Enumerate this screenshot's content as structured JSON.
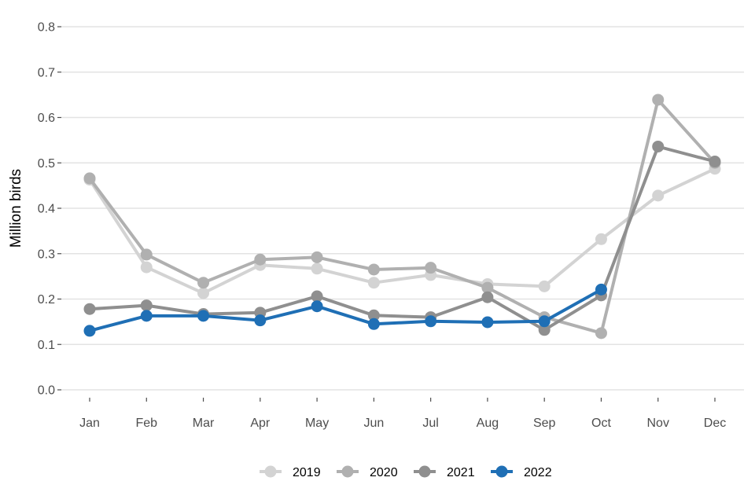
{
  "chart_data": {
    "type": "line",
    "title": "",
    "xlabel": "",
    "ylabel": "Million birds",
    "ylim": [
      0,
      0.8
    ],
    "yticks": [
      0.0,
      0.1,
      0.2,
      0.3,
      0.4,
      0.5,
      0.6,
      0.7,
      0.8
    ],
    "ytick_labels": [
      "0.0",
      "0.1",
      "0.2",
      "0.3",
      "0.4",
      "0.5",
      "0.6",
      "0.7",
      "0.8"
    ],
    "categories": [
      "Jan",
      "Feb",
      "Mar",
      "Apr",
      "May",
      "Jun",
      "Jul",
      "Aug",
      "Sep",
      "Oct",
      "Nov",
      "Dec"
    ],
    "grid": true,
    "legend_position": "bottom",
    "series": [
      {
        "name": "2019",
        "color": "#d3d3d3",
        "values": [
          0.463,
          0.27,
          0.213,
          0.275,
          0.267,
          0.236,
          0.253,
          0.233,
          0.228,
          0.332,
          0.428,
          0.487
        ]
      },
      {
        "name": "2020",
        "color": "#b0b0b0",
        "values": [
          0.466,
          0.298,
          0.236,
          0.287,
          0.292,
          0.265,
          0.269,
          0.225,
          0.16,
          0.125,
          0.639,
          0.5
        ]
      },
      {
        "name": "2021",
        "color": "#8f8f8f",
        "values": [
          0.178,
          0.186,
          0.167,
          0.17,
          0.206,
          0.164,
          0.16,
          0.204,
          0.132,
          0.208,
          0.536,
          0.503
        ]
      },
      {
        "name": "2022",
        "color": "#1f6fb5",
        "values": [
          0.13,
          0.163,
          0.163,
          0.153,
          0.184,
          0.145,
          0.151,
          0.149,
          0.151,
          0.221,
          null,
          null
        ]
      }
    ]
  }
}
